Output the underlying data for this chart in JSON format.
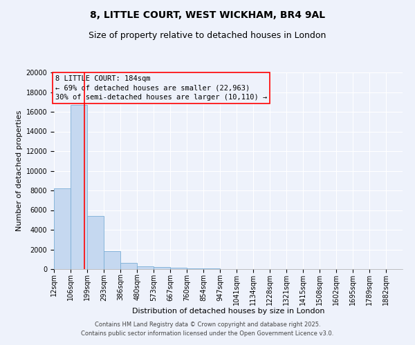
{
  "title_line1": "8, LITTLE COURT, WEST WICKHAM, BR4 9AL",
  "title_line2": "Size of property relative to detached houses in London",
  "xlabel": "Distribution of detached houses by size in London",
  "ylabel": "Number of detached properties",
  "bar_color": "#c5d8f0",
  "bar_edge_color": "#7aaed6",
  "vline_color": "red",
  "vline_x": 184,
  "annotation_title": "8 LITTLE COURT: 184sqm",
  "annotation_line1": "← 69% of detached houses are smaller (22,963)",
  "annotation_line2": "30% of semi-detached houses are larger (10,110) →",
  "annotation_box_color": "red",
  "categories": [
    "12sqm",
    "106sqm",
    "199sqm",
    "293sqm",
    "386sqm",
    "480sqm",
    "573sqm",
    "667sqm",
    "760sqm",
    "854sqm",
    "947sqm",
    "1041sqm",
    "1134sqm",
    "1228sqm",
    "1321sqm",
    "1415sqm",
    "1508sqm",
    "1602sqm",
    "1695sqm",
    "1789sqm",
    "1882sqm"
  ],
  "bin_edges": [
    12,
    106,
    199,
    293,
    386,
    480,
    573,
    667,
    760,
    854,
    947,
    1041,
    1134,
    1228,
    1321,
    1415,
    1508,
    1602,
    1695,
    1789,
    1882
  ],
  "values": [
    8200,
    16700,
    5400,
    1800,
    600,
    300,
    200,
    150,
    100,
    50,
    20,
    10,
    5,
    3,
    2,
    2,
    1,
    1,
    1,
    1
  ],
  "ylim": [
    0,
    20000
  ],
  "yticks": [
    0,
    2000,
    4000,
    6000,
    8000,
    10000,
    12000,
    14000,
    16000,
    18000,
    20000
  ],
  "background_color": "#eef2fb",
  "grid_color": "#ffffff",
  "footer_line1": "Contains HM Land Registry data © Crown copyright and database right 2025.",
  "footer_line2": "Contains public sector information licensed under the Open Government Licence v3.0.",
  "title_fontsize": 10,
  "subtitle_fontsize": 9,
  "axis_label_fontsize": 8,
  "tick_fontsize": 7,
  "annotation_fontsize": 7.5,
  "footer_fontsize": 6
}
